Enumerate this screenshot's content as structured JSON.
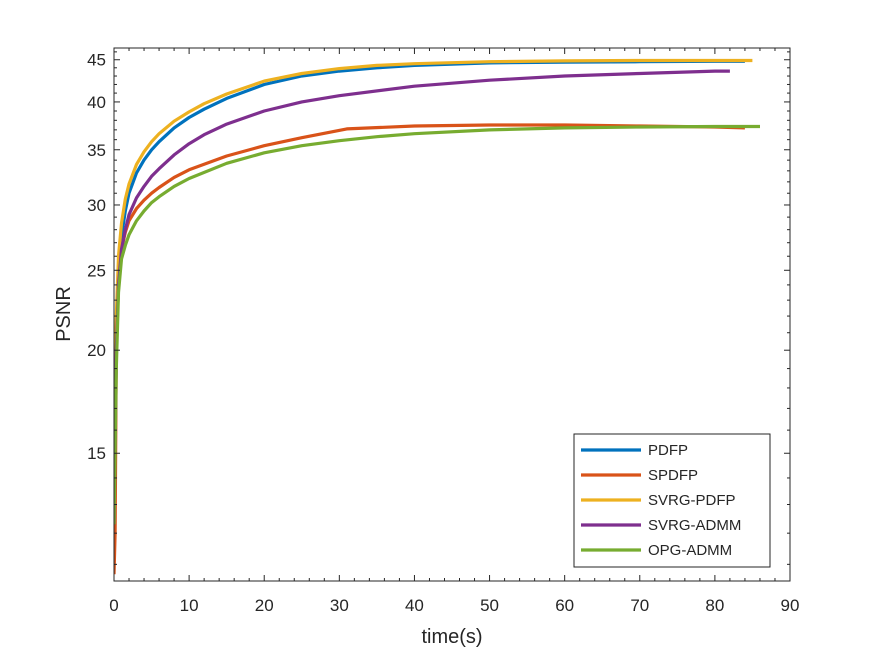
{
  "chart_data": {
    "type": "line",
    "title": "",
    "xlabel": "time(s)",
    "ylabel": "PSNR",
    "xlim": [
      0,
      90
    ],
    "ylim": [
      10.5,
      46.5
    ],
    "yscale": "log",
    "xticks": [
      0,
      10,
      20,
      30,
      40,
      50,
      60,
      70,
      80,
      90
    ],
    "yticks": [
      15,
      20,
      25,
      30,
      35,
      40,
      45
    ],
    "grid": false,
    "legend_position": "bottom-right",
    "series": [
      {
        "name": "PDFP",
        "color": "#0072BD",
        "x": [
          0,
          0.3,
          0.6,
          1,
          1.5,
          2,
          3,
          4,
          5,
          6,
          8,
          10,
          12,
          15,
          20,
          25,
          30,
          35,
          40,
          50,
          60,
          70,
          80,
          84
        ],
        "y": [
          12.5,
          20,
          25,
          27.5,
          29.5,
          31,
          32.8,
          34,
          35,
          35.8,
          37.2,
          38.3,
          39.2,
          40.4,
          42,
          43,
          43.6,
          44,
          44.3,
          44.6,
          44.7,
          44.75,
          44.8,
          44.8
        ]
      },
      {
        "name": "SPDFP",
        "color": "#D95319",
        "x": [
          0,
          0.15,
          0.3,
          0.6,
          1,
          1.5,
          2,
          3,
          4,
          5,
          6,
          8,
          10,
          15,
          20,
          25,
          31,
          40,
          50,
          60,
          70,
          80,
          84
        ],
        "y": [
          10.7,
          12,
          20,
          24,
          26.5,
          27.8,
          28.7,
          29.7,
          30.4,
          31,
          31.5,
          32.4,
          33.1,
          34.4,
          35.4,
          36.2,
          37.1,
          37.4,
          37.5,
          37.5,
          37.4,
          37.3,
          37.2
        ]
      },
      {
        "name": "SVRG-PDFP",
        "color": "#EDB120",
        "x": [
          0,
          0.3,
          0.6,
          1,
          1.5,
          2,
          3,
          4,
          5,
          6,
          8,
          10,
          12,
          15,
          20,
          25,
          30,
          35,
          40,
          50,
          60,
          70,
          80,
          85
        ],
        "y": [
          15,
          22,
          26,
          28.5,
          30.5,
          31.8,
          33.6,
          34.8,
          35.8,
          36.6,
          37.9,
          38.9,
          39.8,
          40.9,
          42.4,
          43.3,
          43.9,
          44.3,
          44.5,
          44.75,
          44.85,
          44.9,
          44.9,
          44.9
        ]
      },
      {
        "name": "SVRG-ADMM",
        "color": "#7E2F8E",
        "x": [
          0,
          0.3,
          0.6,
          1,
          1.5,
          2,
          3,
          4,
          5,
          6,
          8,
          10,
          12,
          15,
          20,
          25,
          30,
          40,
          50,
          60,
          70,
          80,
          82
        ],
        "y": [
          12.3,
          20,
          24,
          26.5,
          28,
          29.2,
          30.6,
          31.6,
          32.5,
          33.2,
          34.5,
          35.6,
          36.5,
          37.6,
          39,
          40,
          40.7,
          41.8,
          42.5,
          43,
          43.3,
          43.6,
          43.6
        ]
      },
      {
        "name": "OPG-ADMM",
        "color": "#77AC30",
        "x": [
          0,
          0.3,
          0.6,
          1,
          1.5,
          2,
          3,
          4,
          5,
          6,
          8,
          10,
          15,
          20,
          25,
          30,
          35,
          40,
          50,
          60,
          70,
          80,
          86
        ],
        "y": [
          12.3,
          19,
          23.5,
          25.8,
          26.8,
          27.6,
          28.7,
          29.5,
          30.2,
          30.7,
          31.6,
          32.3,
          33.7,
          34.7,
          35.4,
          35.9,
          36.3,
          36.6,
          37,
          37.2,
          37.3,
          37.35,
          37.35
        ]
      }
    ]
  }
}
